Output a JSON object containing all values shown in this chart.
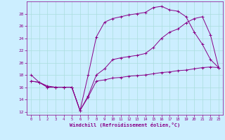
{
  "xlabel": "Windchill (Refroidissement éolien,°C)",
  "bg_color": "#cceeff",
  "grid_color": "#aadddd",
  "line_color": "#880088",
  "marker": "+",
  "xlim": [
    -0.5,
    23.5
  ],
  "ylim": [
    11.5,
    30.0
  ],
  "yticks": [
    12,
    14,
    16,
    18,
    20,
    22,
    24,
    26,
    28
  ],
  "xticks": [
    0,
    1,
    2,
    3,
    4,
    5,
    6,
    7,
    8,
    9,
    10,
    11,
    12,
    13,
    14,
    15,
    16,
    17,
    18,
    19,
    20,
    21,
    22,
    23
  ],
  "line1_x": [
    0,
    1,
    2,
    3,
    4,
    5,
    6,
    7,
    8,
    9,
    10,
    11,
    12,
    13,
    14,
    15,
    16,
    17,
    18,
    19,
    20,
    21,
    22,
    23
  ],
  "line1_y": [
    18.0,
    16.8,
    16.0,
    16.0,
    16.0,
    16.0,
    12.2,
    14.6,
    18.0,
    19.0,
    20.5,
    20.8,
    21.0,
    21.2,
    21.5,
    22.5,
    24.0,
    25.0,
    25.5,
    26.5,
    27.2,
    27.5,
    24.5,
    19.2
  ],
  "line2_x": [
    0,
    1,
    2,
    3,
    4,
    5,
    6,
    7,
    8,
    9,
    10,
    11,
    12,
    13,
    14,
    15,
    16,
    17,
    18,
    19,
    20,
    21,
    22,
    23
  ],
  "line2_y": [
    17.0,
    16.8,
    16.0,
    16.0,
    16.0,
    16.0,
    12.2,
    18.0,
    24.2,
    26.6,
    27.2,
    27.5,
    27.8,
    28.0,
    28.2,
    29.0,
    29.2,
    28.6,
    28.4,
    27.5,
    25.0,
    23.0,
    20.5,
    19.2
  ],
  "line3_x": [
    0,
    1,
    2,
    3,
    4,
    5,
    6,
    7,
    8,
    9,
    10,
    11,
    12,
    13,
    14,
    15,
    16,
    17,
    18,
    19,
    20,
    21,
    22,
    23
  ],
  "line3_y": [
    17.0,
    16.8,
    16.2,
    16.0,
    16.0,
    16.0,
    12.2,
    14.4,
    17.0,
    17.2,
    17.5,
    17.6,
    17.8,
    17.9,
    18.0,
    18.2,
    18.4,
    18.5,
    18.7,
    18.8,
    19.0,
    19.2,
    19.3,
    19.2
  ]
}
